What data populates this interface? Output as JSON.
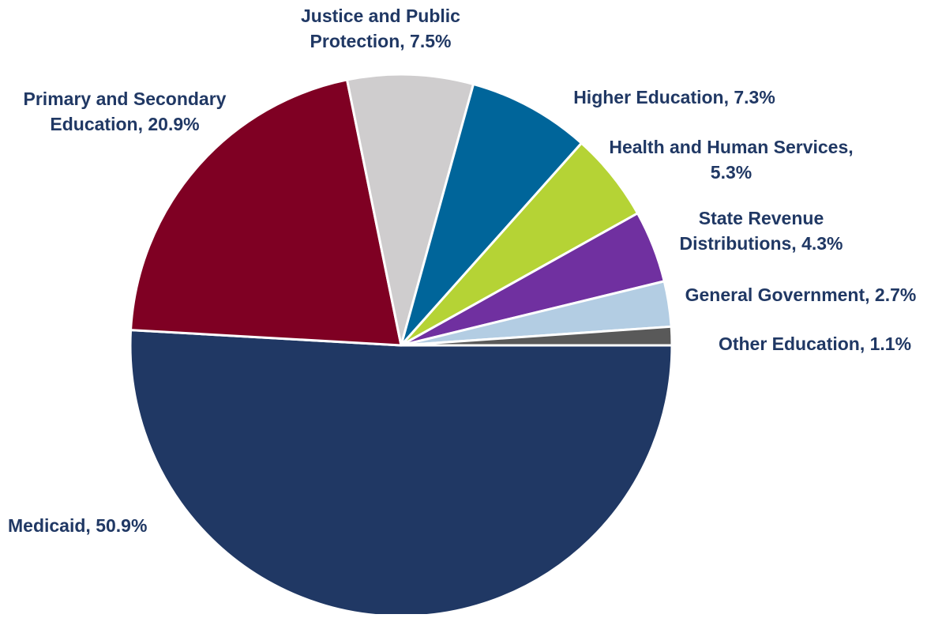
{
  "chart_data": {
    "type": "pie",
    "title": "",
    "slices": [
      {
        "label": "Medicaid",
        "value": 50.9,
        "value_label": "50.9%",
        "color": "#203864",
        "label_lines": [
          "Medicaid, 50.9%"
        ]
      },
      {
        "label": "Primary and Secondary Education",
        "value": 20.9,
        "value_label": "20.9%",
        "color": "#7f0023",
        "label_lines": [
          "Primary and Secondary",
          "Education, 20.9%"
        ]
      },
      {
        "label": "Justice and Public Protection",
        "value": 7.5,
        "value_label": "7.5%",
        "color": "#cfcdce",
        "label_lines": [
          "Justice and Public",
          "Protection, 7.5%"
        ]
      },
      {
        "label": "Higher Education",
        "value": 7.3,
        "value_label": "7.3%",
        "color": "#00659a",
        "label_lines": [
          "Higher Education, 7.3%"
        ]
      },
      {
        "label": "Health and Human Services",
        "value": 5.3,
        "value_label": "5.3%",
        "color": "#b5d335",
        "label_lines": [
          "Health and Human Services,",
          "5.3%"
        ]
      },
      {
        "label": "State Revenue Distributions",
        "value": 4.3,
        "value_label": "4.3%",
        "color": "#7030a0",
        "label_lines": [
          "State Revenue",
          "Distributions, 4.3%"
        ]
      },
      {
        "label": "General Government",
        "value": 2.7,
        "value_label": "2.7%",
        "color": "#b3cde3",
        "label_lines": [
          "General Government, 2.7%"
        ]
      },
      {
        "label": "Other Education",
        "value": 1.1,
        "value_label": "1.1%",
        "color": "#595959",
        "label_lines": [
          "Other Education, 1.1%"
        ]
      }
    ],
    "label_color": "#203864",
    "start_direction": "3 o'clock",
    "direction": "clockwise"
  }
}
